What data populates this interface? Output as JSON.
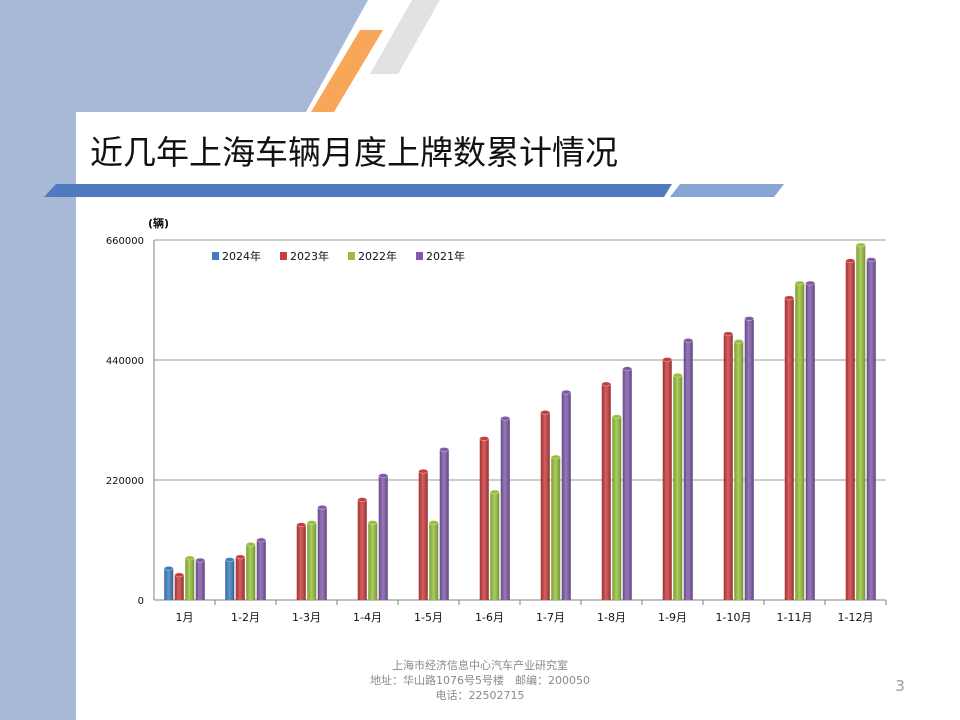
{
  "slide": {
    "title": "近几年上海车辆月度上牌数累计情况",
    "footer": [
      "上海市经济信息中心汽车产业研究室",
      "地址：华山路1076号5号楼　邮编：200050",
      "电话：22502715"
    ],
    "page_number": "3"
  },
  "colors": {
    "side_panel": "#a7b9d7",
    "title_bar": "#4f7ac0",
    "accent_orange": "#f7a757",
    "accent_gray": "#e0e0e0"
  },
  "chart_data": {
    "type": "bar",
    "unit_label": "(辆)",
    "categories": [
      "1月",
      "1-2月",
      "1-3月",
      "1-4月",
      "1-5月",
      "1-6月",
      "1-7月",
      "1-8月",
      "1-9月",
      "1-10月",
      "1-11月",
      "1-12月"
    ],
    "ylim": [
      0,
      660000
    ],
    "yticks": [
      "0",
      "220000",
      "440000",
      "660000"
    ],
    "ytick_values": [
      0,
      220000,
      440000,
      660000
    ],
    "grid": true,
    "legend_position": "top-left",
    "series": [
      {
        "name": "2024年",
        "color": "#3f7fc0",
        "values": [
          58000,
          74000,
          null,
          null,
          null,
          null,
          null,
          null,
          null,
          null,
          null,
          null
        ]
      },
      {
        "name": "2023年",
        "color": "#c83c3c",
        "values": [
          46000,
          79000,
          138000,
          184000,
          236000,
          296000,
          344000,
          396000,
          441000,
          488000,
          554000,
          622000
        ]
      },
      {
        "name": "2022年",
        "color": "#97c13c",
        "values": [
          77000,
          102000,
          142000,
          142000,
          142000,
          198000,
          262000,
          336000,
          412000,
          474000,
          581000,
          651000
        ]
      },
      {
        "name": "2021年",
        "color": "#7f5aa8",
        "values": [
          73000,
          110000,
          170000,
          228000,
          276000,
          333000,
          381000,
          424000,
          476000,
          516000,
          581000,
          624000
        ]
      }
    ]
  }
}
